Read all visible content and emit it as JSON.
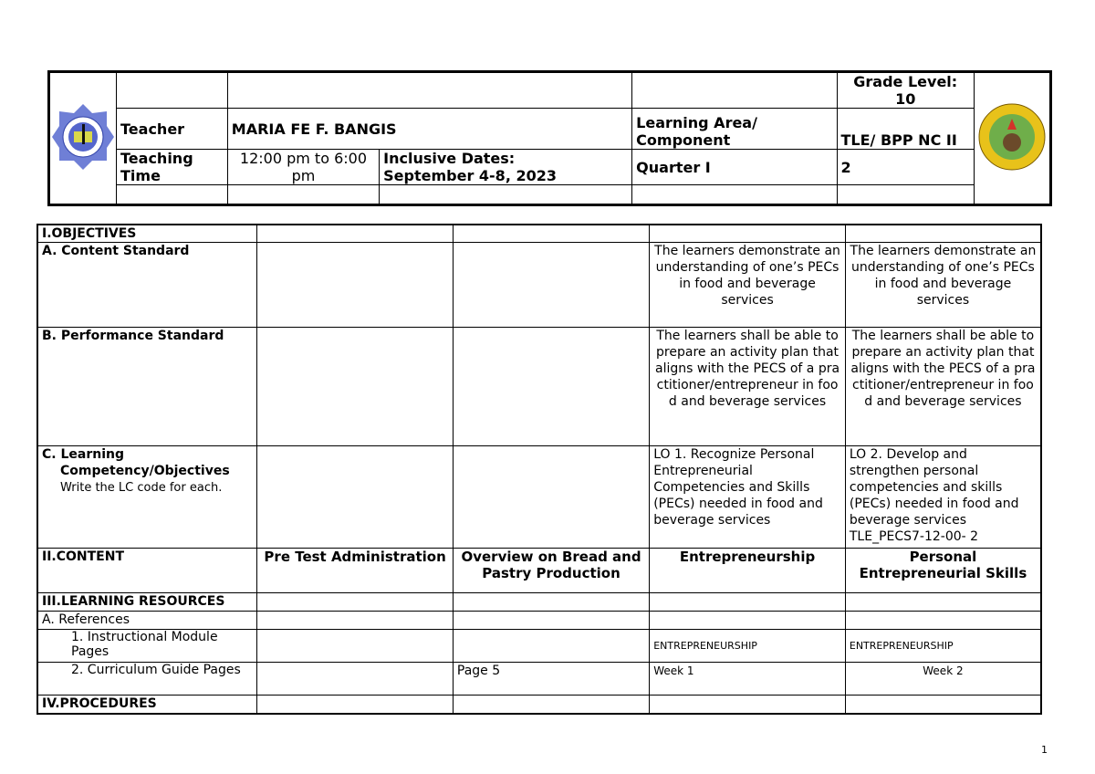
{
  "header": {
    "teacher_label": "Teacher",
    "teacher": "MARIA FE F. BANGIS",
    "time_label": "Teaching Time",
    "time": "12:00 pm to 6:00 pm",
    "dates_label": "Inclusive Dates:",
    "dates": "September 4-8, 2023",
    "grade_label": "Grade Level: 10",
    "area_label": "Learning Area/ Component",
    "area": "TLE/ BPP NC II",
    "quarter_label": "Quarter I",
    "quarter": "2"
  },
  "colors": {
    "border": "#000000"
  },
  "rows": {
    "objectives": "I.OBJECTIVES",
    "content_std": "A.  Content Standard",
    "content_std_text": "The learners demonstrate an understanding of one’s PECs in food and beverage services",
    "perf_std": "B.  Performance Standard",
    "perf_std_text": "The learners shall be able to prepare an activity plan that aligns with the PECS of a practitioner/entrepreneur in food and beverage services",
    "lc": "C. Learning",
    "lc2": "Competency/Objectives",
    "lc_note": "Write the LC code for each.",
    "lc_d4": "LO 1. Recognize Personal Entrepreneurial Competencies and Skills (PECs) needed in food and beverage services",
    "lc_d5": "LO 2. Develop and strengthen personal competencies and skills (PECs) needed in food and beverage services TLE_PECS7-12-00- 2",
    "content": "II.CONTENT",
    "content_d2": "Pre Test Administration",
    "content_d3": "Overview on Bread and Pastry Production",
    "content_d4": "Entrepreneurship",
    "content_d5": "Personal Entrepreneurial Skills",
    "resources": "III.LEARNING RESOURCES",
    "references": "A.  References",
    "module": "1.   Instructional Module Pages",
    "module_d4": "ENTREPRENEURSHIP",
    "module_d5": "ENTREPRENEURSHIP",
    "guide": "2.    Curriculum Guide Pages",
    "guide_d3": "Page 5",
    "guide_d4": "Week 1",
    "guide_d5": "Week 2",
    "procedures": "IV.PROCEDURES"
  },
  "page_number": "1"
}
